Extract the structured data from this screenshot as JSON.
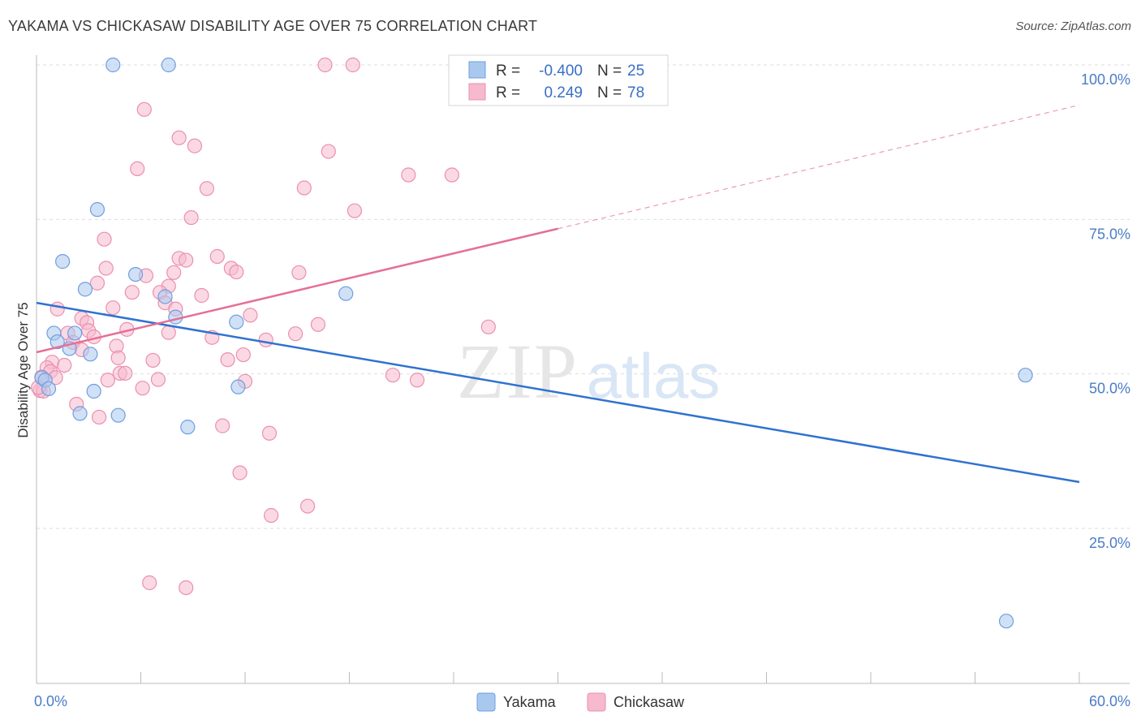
{
  "header": {
    "title": "YAKAMA VS CHICKASAW DISABILITY AGE OVER 75 CORRELATION CHART",
    "source": "Source: ZipAtlas.com"
  },
  "watermark": {
    "zip": "ZIP",
    "atlas": "atlas"
  },
  "colors": {
    "yakama_fill": "#a9c8ee",
    "yakama_stroke": "#6f9ee0",
    "yakama_line": "#2f72d0",
    "chickasaw_fill": "#f6b9cd",
    "chickasaw_stroke": "#eb8fae",
    "chickasaw_line": "#e56f97",
    "tick_text": "#4a7cc7",
    "grid": "#dddddd"
  },
  "legend": {
    "rows": [
      {
        "r_label": "R =",
        "r_value": "-0.400",
        "n_label": "N =",
        "n_value": "25"
      },
      {
        "r_label": "R =",
        "r_value": "0.249",
        "n_label": "N =",
        "n_value": "78"
      }
    ]
  },
  "chart_data": {
    "type": "scatter",
    "title": "YAKAMA VS CHICKASAW DISABILITY AGE OVER 75 CORRELATION CHART",
    "xlabel": "",
    "ylabel": "Disability Age Over 75",
    "xlim": [
      0,
      60
    ],
    "ylim": [
      0,
      105
    ],
    "x_tick_labels": [
      "0.0%",
      "60.0%"
    ],
    "y_ticks": [
      {
        "value": 25,
        "label": "25.0%"
      },
      {
        "value": 50,
        "label": "50.0%"
      },
      {
        "value": 75,
        "label": "75.0%"
      },
      {
        "value": 100,
        "label": "100.0%"
      }
    ],
    "series": [
      {
        "name": "Yakama",
        "r": -0.4,
        "n": 25,
        "trend": {
          "x": [
            0,
            60
          ],
          "y": [
            61.5,
            32.5
          ],
          "dashed_to": null
        },
        "points": [
          [
            4.4,
            100
          ],
          [
            7.6,
            100
          ],
          [
            3.5,
            76.6
          ],
          [
            1.5,
            68.2
          ],
          [
            2.8,
            63.7
          ],
          [
            5.7,
            66.1
          ],
          [
            7.4,
            62.5
          ],
          [
            17.8,
            63.0
          ],
          [
            8.0,
            59.2
          ],
          [
            11.5,
            58.4
          ],
          [
            1.0,
            56.6
          ],
          [
            1.2,
            55.2
          ],
          [
            2.2,
            56.6
          ],
          [
            1.9,
            54.1
          ],
          [
            3.1,
            53.2
          ],
          [
            0.3,
            49.4
          ],
          [
            0.5,
            49.0
          ],
          [
            0.7,
            47.6
          ],
          [
            3.3,
            47.2
          ],
          [
            11.6,
            47.9
          ],
          [
            2.5,
            43.6
          ],
          [
            4.7,
            43.3
          ],
          [
            8.7,
            41.4
          ],
          [
            56.9,
            49.8
          ],
          [
            55.8,
            10.0
          ]
        ]
      },
      {
        "name": "Chickasaw",
        "r": 0.249,
        "n": 78,
        "trend": {
          "x": [
            0,
            30
          ],
          "y": [
            53.5,
            73.5
          ],
          "dashed_to": [
            60,
            93.5
          ]
        },
        "points": [
          [
            16.6,
            100
          ],
          [
            18.2,
            100
          ],
          [
            6.2,
            92.8
          ],
          [
            8.2,
            88.2
          ],
          [
            9.1,
            86.9
          ],
          [
            16.8,
            86.0
          ],
          [
            5.8,
            83.2
          ],
          [
            21.4,
            82.2
          ],
          [
            23.9,
            82.2
          ],
          [
            9.8,
            80.0
          ],
          [
            15.4,
            80.1
          ],
          [
            18.3,
            76.4
          ],
          [
            8.9,
            75.3
          ],
          [
            3.9,
            71.8
          ],
          [
            10.4,
            69.0
          ],
          [
            8.2,
            68.7
          ],
          [
            8.6,
            68.4
          ],
          [
            4.0,
            67.1
          ],
          [
            11.2,
            67.1
          ],
          [
            11.5,
            66.5
          ],
          [
            15.1,
            66.4
          ],
          [
            7.9,
            66.4
          ],
          [
            6.3,
            65.9
          ],
          [
            3.5,
            64.7
          ],
          [
            7.6,
            64.2
          ],
          [
            5.5,
            63.2
          ],
          [
            7.1,
            63.2
          ],
          [
            9.5,
            62.7
          ],
          [
            7.4,
            61.5
          ],
          [
            1.2,
            60.5
          ],
          [
            4.4,
            60.7
          ],
          [
            8.0,
            60.5
          ],
          [
            12.3,
            59.5
          ],
          [
            2.6,
            59.0
          ],
          [
            2.9,
            58.3
          ],
          [
            16.2,
            58.0
          ],
          [
            26.0,
            57.6
          ],
          [
            5.2,
            57.2
          ],
          [
            3.0,
            57.0
          ],
          [
            7.6,
            56.7
          ],
          [
            1.8,
            56.6
          ],
          [
            14.9,
            56.5
          ],
          [
            3.3,
            56.0
          ],
          [
            10.1,
            55.9
          ],
          [
            13.2,
            55.5
          ],
          [
            2.1,
            55.1
          ],
          [
            4.6,
            54.5
          ],
          [
            2.6,
            53.9
          ],
          [
            11.9,
            53.1
          ],
          [
            4.7,
            52.6
          ],
          [
            6.7,
            52.2
          ],
          [
            11.0,
            52.3
          ],
          [
            0.9,
            51.9
          ],
          [
            1.6,
            51.4
          ],
          [
            0.6,
            51.0
          ],
          [
            0.8,
            50.4
          ],
          [
            4.8,
            50.1
          ],
          [
            5.1,
            50.1
          ],
          [
            20.5,
            49.8
          ],
          [
            0.3,
            49.5
          ],
          [
            1.1,
            49.4
          ],
          [
            4.1,
            49.0
          ],
          [
            7.0,
            49.1
          ],
          [
            12.0,
            48.8
          ],
          [
            21.9,
            49.0
          ],
          [
            6.1,
            47.7
          ],
          [
            0.2,
            47.3
          ],
          [
            0.4,
            47.2
          ],
          [
            2.3,
            45.1
          ],
          [
            3.6,
            43.0
          ],
          [
            10.7,
            41.6
          ],
          [
            13.4,
            40.4
          ],
          [
            11.7,
            34.0
          ],
          [
            15.6,
            28.6
          ],
          [
            13.5,
            27.1
          ],
          [
            6.5,
            16.2
          ],
          [
            8.6,
            15.4
          ],
          [
            0.1,
            47.8
          ]
        ]
      }
    ]
  },
  "bottom_legend": {
    "items": [
      {
        "label": "Yakama"
      },
      {
        "label": "Chickasaw"
      }
    ]
  }
}
